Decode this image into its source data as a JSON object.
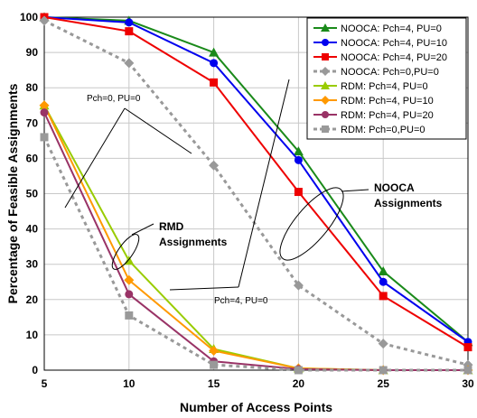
{
  "chart_data": {
    "type": "line",
    "title": "",
    "xlabel": "Number of Access Points",
    "ylabel": "Percentage of Feasible Assignments",
    "x": [
      5,
      10,
      15,
      20,
      25,
      30
    ],
    "xlim": [
      5,
      30
    ],
    "ylim": [
      0,
      100
    ],
    "xticks": [
      "5",
      "10",
      "15",
      "20",
      "25",
      "30"
    ],
    "yticks": [
      "0",
      "10",
      "20",
      "30",
      "40",
      "50",
      "60",
      "70",
      "80",
      "90",
      "100"
    ],
    "grid": true,
    "legend_position": "top-right",
    "series": [
      {
        "name": "NOOCA: Pch=4, PU=0",
        "color": "#1a8a1a",
        "marker": "triangle",
        "dash": false,
        "values": [
          100,
          99,
          90,
          62,
          28,
          8
        ]
      },
      {
        "name": "NOOCA: Pch=4, PU=10",
        "color": "#0000ee",
        "marker": "circle",
        "dash": false,
        "values": [
          100,
          98.5,
          87,
          59.5,
          25,
          8
        ]
      },
      {
        "name": "NOOCA: Pch=4, PU=20",
        "color": "#ee0000",
        "marker": "square",
        "dash": false,
        "values": [
          100,
          96,
          81.5,
          50.5,
          21,
          6.5
        ]
      },
      {
        "name": "NOOCA: Pch=0,PU=0",
        "color": "#999999",
        "marker": "diamond",
        "dash": true,
        "values": [
          99,
          87,
          58,
          24,
          7.5,
          1.5
        ]
      },
      {
        "name": "RDM: Pch=4, PU=0",
        "color": "#99cc00",
        "marker": "triangle",
        "dash": false,
        "values": [
          75,
          31,
          6,
          0.5,
          0,
          0
        ]
      },
      {
        "name": "RDM: Pch=4, PU=10",
        "color": "#ff9900",
        "marker": "diamond",
        "dash": false,
        "values": [
          75,
          25.5,
          5.5,
          0.5,
          0,
          0
        ]
      },
      {
        "name": "RDM: Pch=4, PU=20",
        "color": "#993366",
        "marker": "circle",
        "dash": false,
        "values": [
          73,
          21.5,
          2.5,
          0.3,
          0,
          0
        ]
      },
      {
        "name": "RDM: Pch=0,PU=0",
        "color": "#999999",
        "marker": "square",
        "dash": true,
        "values": [
          66,
          15.5,
          1.5,
          0,
          0,
          0
        ]
      }
    ],
    "annotations": {
      "pch0": "Pch=0, PU=0",
      "pch4": "Pch=4, PU=0",
      "rmd_line1": "RMD",
      "rmd_line2": "Assignments",
      "nooca_line1": "NOOCA",
      "nooca_line2": "Assignments"
    }
  }
}
